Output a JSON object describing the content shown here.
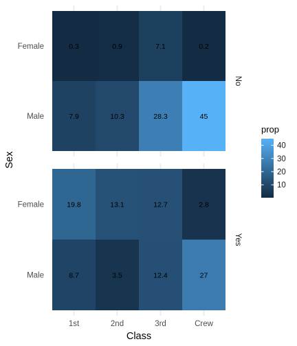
{
  "chart_data": {
    "type": "heatmap",
    "xlabel": "Class",
    "ylabel": "Sex",
    "categories": [
      "1st",
      "2nd",
      "3rd",
      "Crew"
    ],
    "rows": [
      "Female",
      "Male"
    ],
    "facets": [
      {
        "name": "No",
        "values": [
          [
            0.3,
            0.9,
            7.1,
            0.2
          ],
          [
            7.9,
            10.3,
            28.3,
            45
          ]
        ],
        "labels": [
          [
            "0.3",
            "0.9",
            "7.1",
            "0.2"
          ],
          [
            "7.9",
            "10.3",
            "28.3",
            "45"
          ]
        ]
      },
      {
        "name": "Yes",
        "values": [
          [
            19.8,
            13.1,
            12.7,
            2.8
          ],
          [
            8.7,
            3.5,
            12.4,
            27
          ]
        ],
        "labels": [
          [
            "19.8",
            "13.1",
            "12.7",
            "2.8"
          ],
          [
            "8.7",
            "3.5",
            "12.4",
            "27"
          ]
        ]
      }
    ],
    "legend": {
      "title": "prop",
      "ticks": [
        10,
        20,
        30,
        40
      ],
      "tick_labels": [
        "10",
        "20",
        "30",
        "40"
      ],
      "range": [
        0.2,
        45
      ],
      "low_color": "#132b43",
      "high_color": "#56b1f7",
      "placement": "right"
    },
    "grid": true
  }
}
